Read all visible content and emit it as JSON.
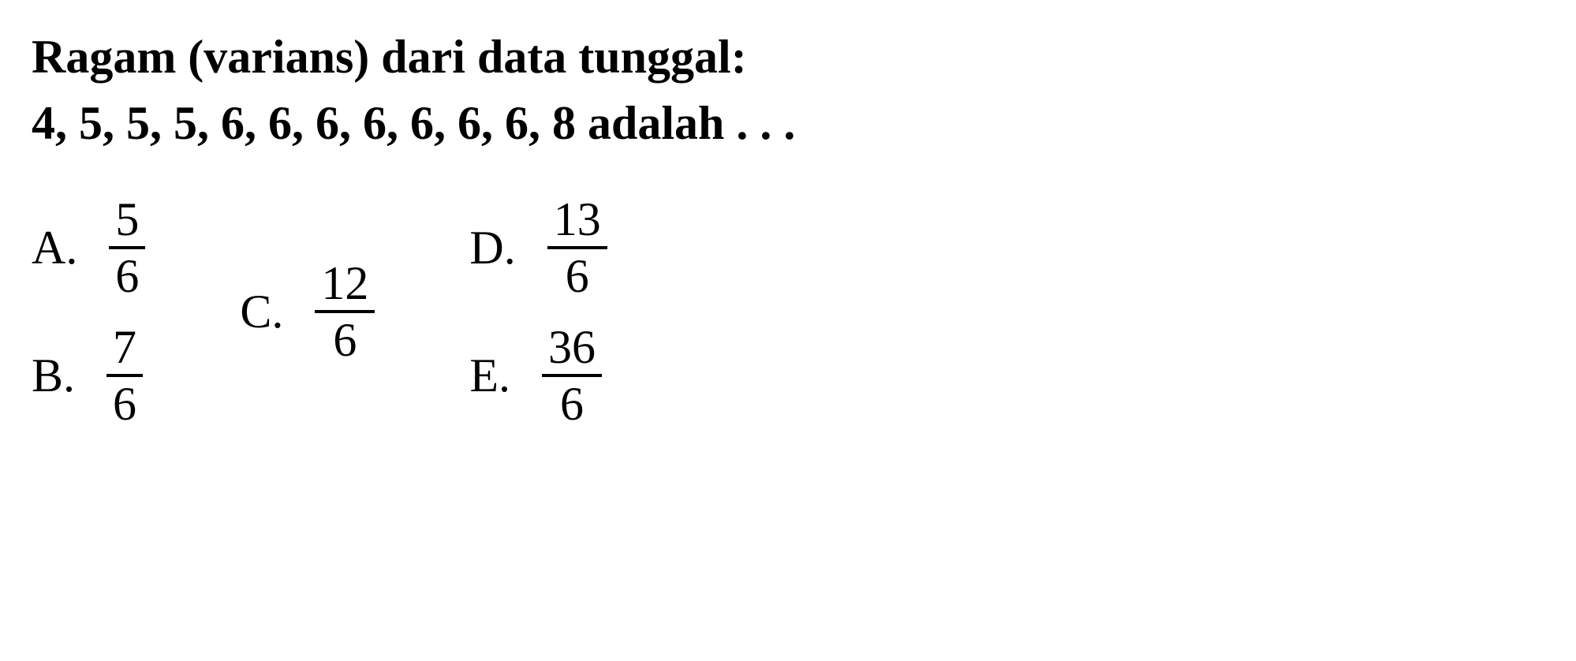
{
  "question": {
    "line1": "Ragam (varians) dari data tunggal:",
    "line2": "4, 5, 5, 5, 6, 6, 6, 6, 6, 6, 6, 8 adalah . . ."
  },
  "options": {
    "A": {
      "label": "A.",
      "numerator": "5",
      "denominator": "6"
    },
    "B": {
      "label": "B.",
      "numerator": "7",
      "denominator": "6"
    },
    "C": {
      "label": "C.",
      "numerator": "12",
      "denominator": "6"
    },
    "D": {
      "label": "D.",
      "numerator": "13",
      "denominator": "6"
    },
    "E": {
      "label": "E.",
      "numerator": "36",
      "denominator": "6"
    }
  },
  "styling": {
    "background_color": "#ffffff",
    "text_color": "#000000",
    "font_family": "Times New Roman",
    "question_fontsize": 60,
    "question_fontweight": "bold",
    "option_fontsize": 60,
    "fraction_border_width": 4
  }
}
